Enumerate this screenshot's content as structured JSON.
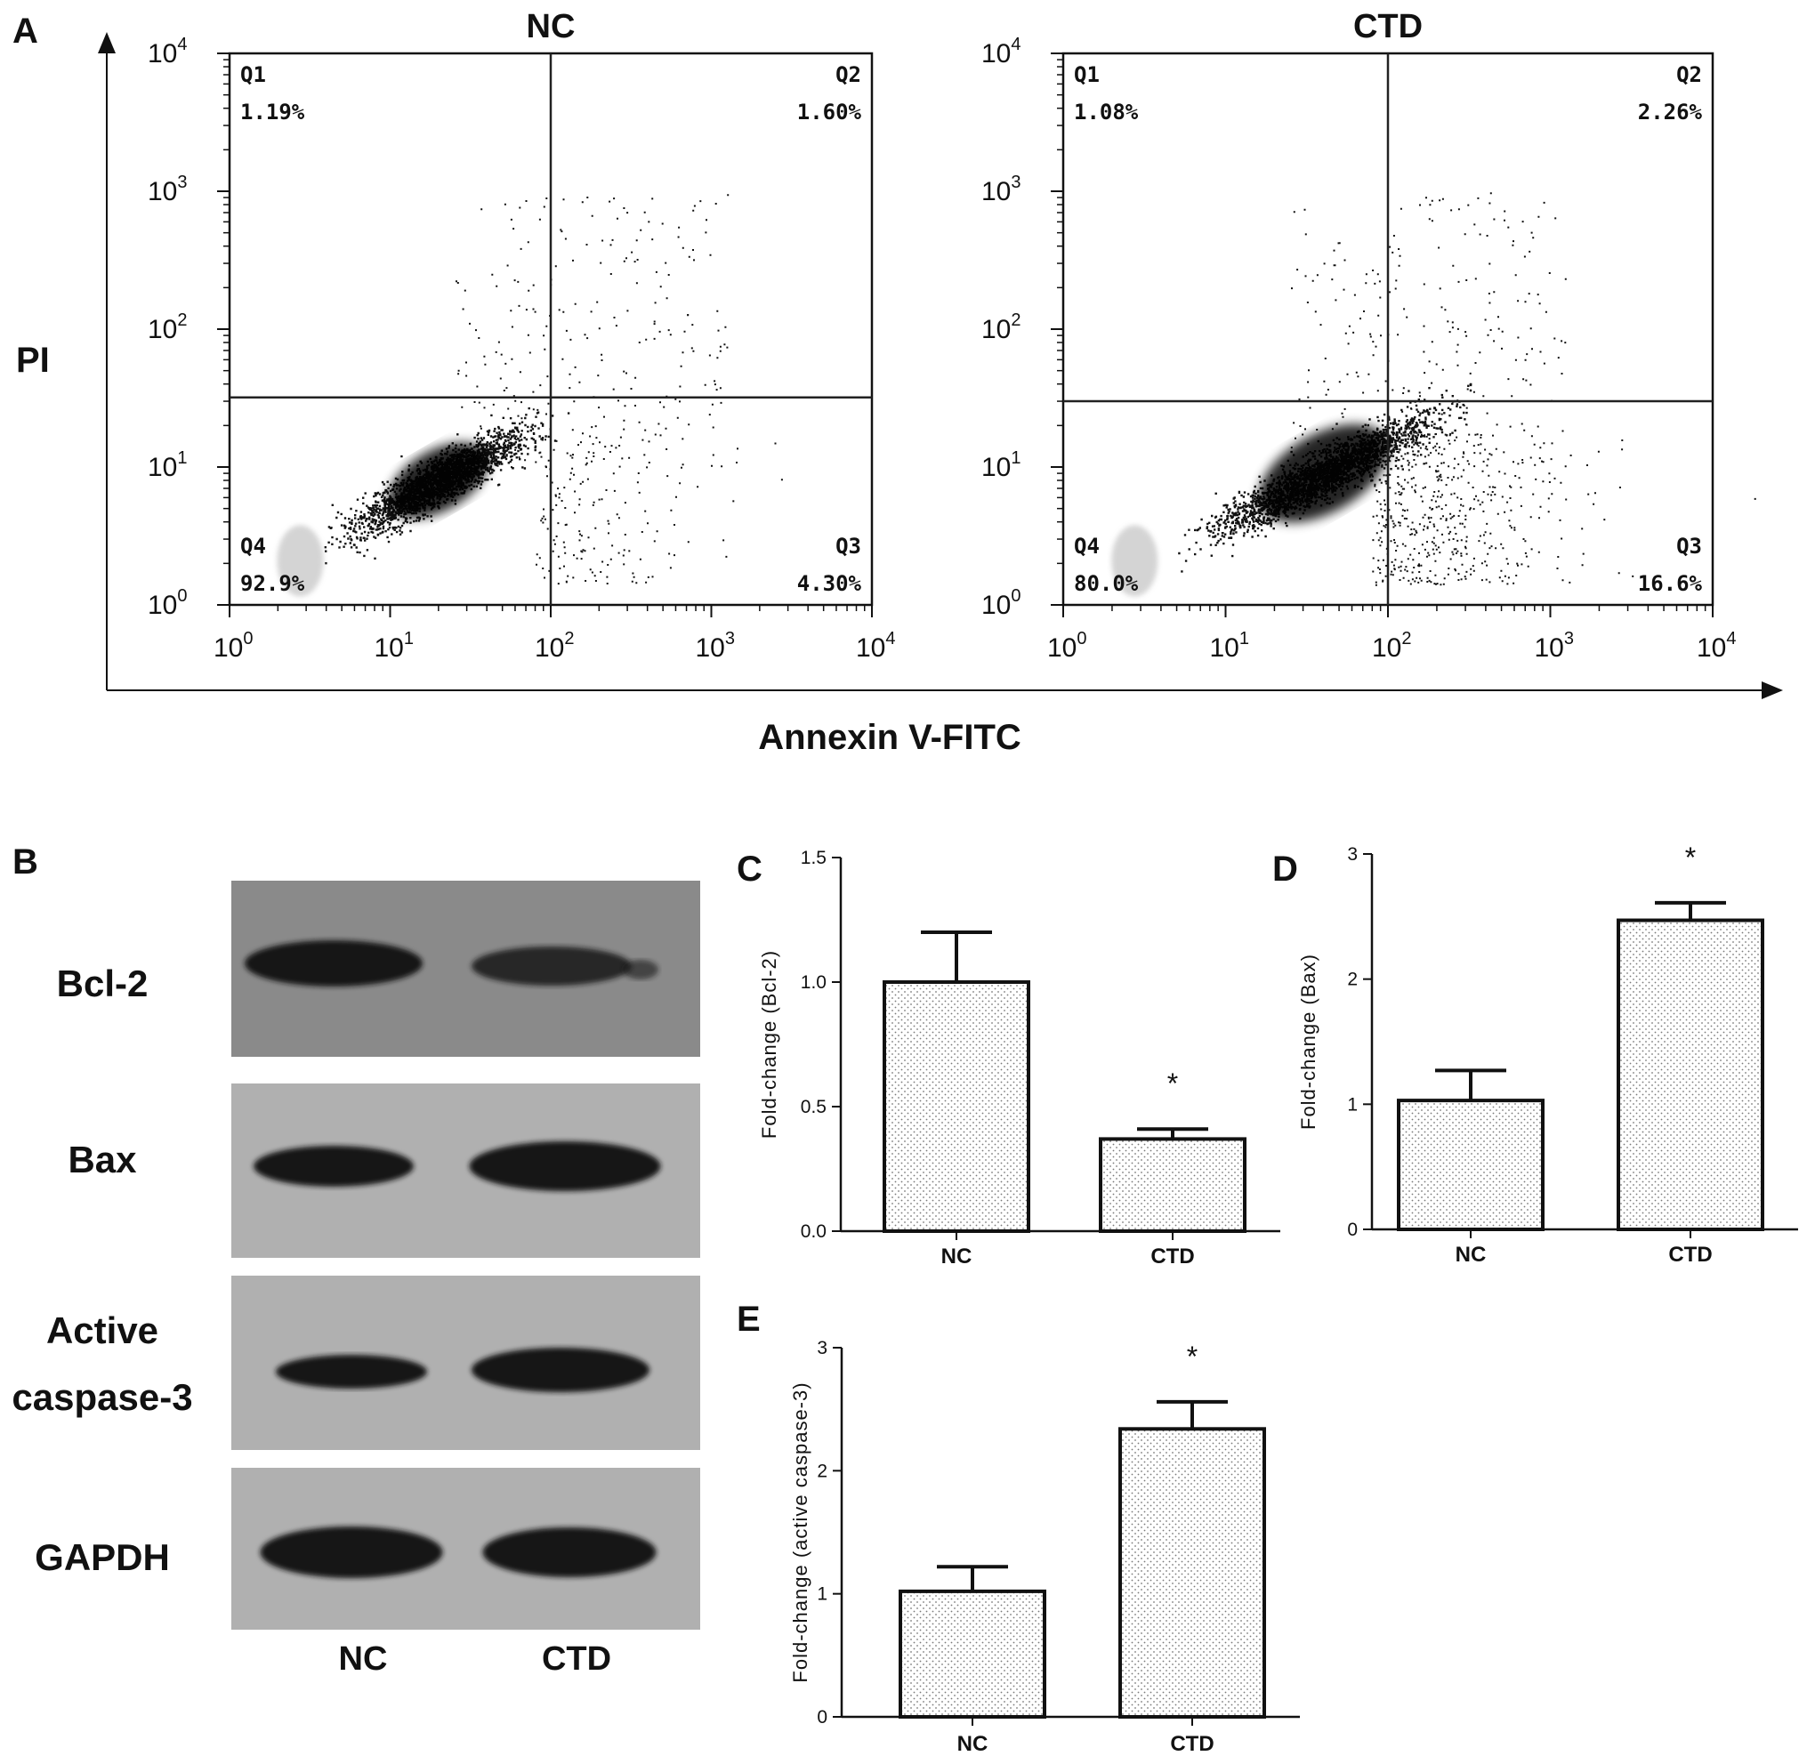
{
  "panel_letters": [
    "A",
    "B",
    "C",
    "D",
    "E"
  ],
  "chart_data": [
    {
      "id": "A-NC",
      "type": "scatter",
      "title": "NC",
      "xlabel": "Annexin V-FITC",
      "ylabel": "PI",
      "xscale": "log",
      "yscale": "log",
      "xlim": [
        1,
        10000
      ],
      "ylim": [
        1,
        10000
      ],
      "x_ticks": [
        {
          "base": "10",
          "exp": "0"
        },
        {
          "base": "10",
          "exp": "1"
        },
        {
          "base": "10",
          "exp": "2"
        },
        {
          "base": "10",
          "exp": "3"
        },
        {
          "base": "10",
          "exp": "4"
        }
      ],
      "y_ticks": [
        {
          "base": "10",
          "exp": "0"
        },
        {
          "base": "10",
          "exp": "1"
        },
        {
          "base": "10",
          "exp": "2"
        },
        {
          "base": "10",
          "exp": "3"
        },
        {
          "base": "10",
          "exp": "4"
        }
      ],
      "gate": {
        "x": 100,
        "y": 32
      },
      "quadrants": [
        {
          "name": "Q1",
          "percent": "1.19%",
          "corner": "top-left"
        },
        {
          "name": "Q2",
          "percent": "1.60%",
          "corner": "top-right"
        },
        {
          "name": "Q3",
          "percent": "4.30%",
          "corner": "bottom-right"
        },
        {
          "name": "Q4",
          "percent": "92.9%",
          "corner": "bottom-left"
        }
      ],
      "population_center": {
        "x": 20,
        "y": 8
      }
    },
    {
      "id": "A-CTD",
      "type": "scatter",
      "title": "CTD",
      "xlabel": "Annexin V-FITC",
      "ylabel": "PI",
      "xscale": "log",
      "yscale": "log",
      "xlim": [
        1,
        10000
      ],
      "ylim": [
        1,
        10000
      ],
      "x_ticks": [
        {
          "base": "10",
          "exp": "0"
        },
        {
          "base": "10",
          "exp": "1"
        },
        {
          "base": "10",
          "exp": "2"
        },
        {
          "base": "10",
          "exp": "3"
        },
        {
          "base": "10",
          "exp": "4"
        }
      ],
      "y_ticks": [
        {
          "base": "10",
          "exp": "0"
        },
        {
          "base": "10",
          "exp": "1"
        },
        {
          "base": "10",
          "exp": "2"
        },
        {
          "base": "10",
          "exp": "3"
        },
        {
          "base": "10",
          "exp": "4"
        }
      ],
      "gate": {
        "x": 100,
        "y": 30
      },
      "quadrants": [
        {
          "name": "Q1",
          "percent": "1.08%",
          "corner": "top-left"
        },
        {
          "name": "Q2",
          "percent": "2.26%",
          "corner": "top-right"
        },
        {
          "name": "Q3",
          "percent": "16.6%",
          "corner": "bottom-right"
        },
        {
          "name": "Q4",
          "percent": "80.0%",
          "corner": "bottom-left"
        }
      ],
      "population_center": {
        "x": 40,
        "y": 9
      }
    },
    {
      "id": "C",
      "type": "bar",
      "categories": [
        "NC",
        "CTD"
      ],
      "values": [
        1.0,
        0.37
      ],
      "errors": [
        0.2,
        0.04
      ],
      "significance": [
        "",
        "*"
      ],
      "ylabel": "Fold-change (Bcl-2)",
      "ylim": [
        0,
        1.5
      ],
      "y_ticks": [
        "0.0",
        "0.5",
        "1.0",
        "1.5"
      ]
    },
    {
      "id": "D",
      "type": "bar",
      "categories": [
        "NC",
        "CTD"
      ],
      "values": [
        1.03,
        2.47
      ],
      "errors": [
        0.24,
        0.14
      ],
      "significance": [
        "",
        "*"
      ],
      "ylabel": "Fold-change (Bax)",
      "ylim": [
        0,
        3
      ],
      "y_ticks": [
        "0",
        "1",
        "2",
        "3"
      ]
    },
    {
      "id": "E",
      "type": "bar",
      "categories": [
        "NC",
        "CTD"
      ],
      "values": [
        1.02,
        2.34
      ],
      "errors": [
        0.2,
        0.22
      ],
      "significance": [
        "",
        "*"
      ],
      "ylabel": "Fold-change (active caspase-3)",
      "ylim": [
        0,
        3
      ],
      "y_ticks": [
        "0",
        "1",
        "2",
        "3"
      ]
    }
  ],
  "western_blot": {
    "rows": [
      "Bcl-2",
      "Bax",
      "Active",
      "caspase-3",
      "GAPDH"
    ],
    "lanes": [
      "NC",
      "CTD"
    ]
  }
}
